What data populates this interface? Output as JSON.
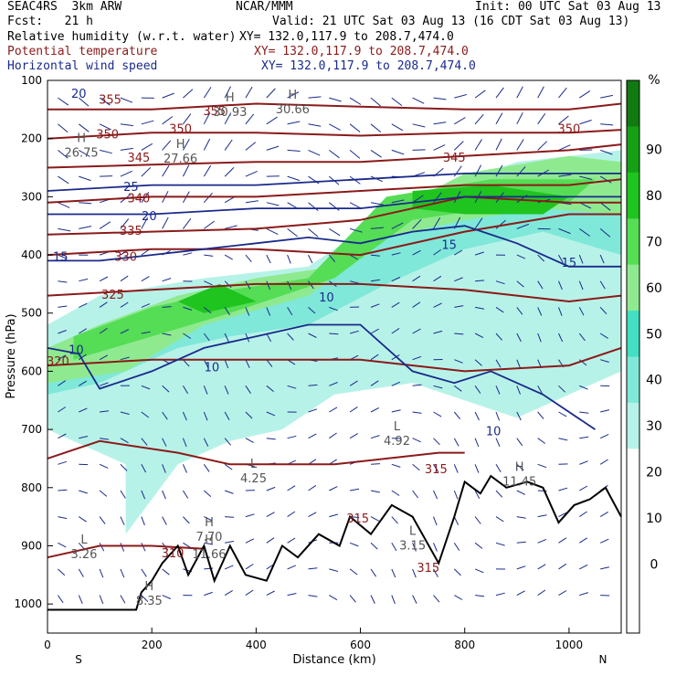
{
  "header": {
    "model": "SEAC4RS  3km ARW",
    "org": "NCAR/MMM",
    "init": "Init: 00 UTC Sat 03 Aug 13",
    "fcst": "Fcst:   21 h",
    "valid": "Valid: 21 UTC Sat 03 Aug 13 (16 CDT Sat 03 Aug 13)",
    "fields": [
      {
        "name": "Relative humidity (w.r.t. water)",
        "xy": "XY= 132.0,117.9 to 208.7,474.0",
        "color": "#000000"
      },
      {
        "name": "Potential temperature",
        "xy": "XY= 132.0,117.9 to 208.7,474.0",
        "color": "#8b1a1a"
      },
      {
        "name": "Horizontal wind speed",
        "xy": "XY= 132.0,117.9 to 208.7,474.0",
        "color": "#1a2a8b"
      }
    ]
  },
  "chart_data": {
    "type": "cross-section",
    "xlabel": "Distance (km)",
    "ylabel": "Pressure (hPa)",
    "xlim": [
      0,
      1100
    ],
    "ylim": [
      1050,
      100
    ],
    "x_ticks": [
      0,
      200,
      400,
      600,
      800,
      1000
    ],
    "y_ticks": [
      100,
      200,
      300,
      400,
      500,
      600,
      700,
      800,
      900,
      1000
    ],
    "x_endpoints": {
      "left": "S",
      "right": "N"
    },
    "colorbar": {
      "unit": "%",
      "ticks": [
        0,
        10,
        20,
        30,
        40,
        50,
        60,
        70,
        80,
        90
      ],
      "colors": [
        "#ffffff",
        "#ffffff",
        "#ffffff",
        "#ffffff",
        "#b7f2e8",
        "#7fe8d8",
        "#42dfc2",
        "#8fea8f",
        "#55dd55",
        "#1fc41f",
        "#16a016",
        "#117a11"
      ]
    },
    "rh_regions": [
      {
        "level": 40,
        "color": "#b7f2e8",
        "points": [
          [
            0,
            520
          ],
          [
            100,
            470
          ],
          [
            300,
            440
          ],
          [
            500,
            420
          ],
          [
            700,
            300
          ],
          [
            900,
            240
          ],
          [
            1100,
            220
          ],
          [
            1100,
            600
          ],
          [
            900,
            680
          ],
          [
            700,
            620
          ],
          [
            550,
            640
          ],
          [
            450,
            700
          ],
          [
            350,
            720
          ],
          [
            250,
            760
          ],
          [
            200,
            820
          ],
          [
            150,
            880
          ],
          [
            150,
            760
          ],
          [
            0,
            700
          ]
        ]
      },
      {
        "level": 50,
        "color": "#7fe8d8",
        "points": [
          [
            0,
            560
          ],
          [
            150,
            510
          ],
          [
            300,
            480
          ],
          [
            500,
            460
          ],
          [
            650,
            350
          ],
          [
            800,
            290
          ],
          [
            1000,
            250
          ],
          [
            1100,
            250
          ],
          [
            1100,
            400
          ],
          [
            950,
            360
          ],
          [
            800,
            390
          ],
          [
            650,
            450
          ],
          [
            500,
            520
          ],
          [
            350,
            540
          ],
          [
            250,
            560
          ],
          [
            100,
            620
          ],
          [
            0,
            640
          ]
        ]
      },
      {
        "level": 60,
        "color": "#8fea8f",
        "points": [
          [
            0,
            560
          ],
          [
            100,
            520
          ],
          [
            250,
            470
          ],
          [
            400,
            440
          ],
          [
            550,
            420
          ],
          [
            650,
            330
          ],
          [
            800,
            260
          ],
          [
            1000,
            230
          ],
          [
            1100,
            240
          ],
          [
            1100,
            330
          ],
          [
            950,
            320
          ],
          [
            800,
            340
          ],
          [
            650,
            370
          ],
          [
            500,
            470
          ],
          [
            300,
            520
          ],
          [
            150,
            600
          ],
          [
            0,
            620
          ]
        ]
      },
      {
        "level": 70,
        "color": "#55dd55",
        "points": [
          [
            50,
            540
          ],
          [
            200,
            490
          ],
          [
            350,
            460
          ],
          [
            500,
            440
          ],
          [
            650,
            300
          ],
          [
            850,
            270
          ],
          [
            1050,
            270
          ],
          [
            1000,
            310
          ],
          [
            850,
            320
          ],
          [
            700,
            340
          ],
          [
            550,
            440
          ],
          [
            350,
            500
          ],
          [
            200,
            540
          ],
          [
            50,
            580
          ]
        ]
      },
      {
        "level": 80,
        "color": "#1fc41f",
        "points": [
          [
            250,
            480
          ],
          [
            330,
            450
          ],
          [
            400,
            480
          ],
          [
            300,
            500
          ]
        ]
      },
      {
        "level": 80,
        "color": "#1fc41f",
        "points": [
          [
            700,
            290
          ],
          [
            850,
            280
          ],
          [
            1000,
            300
          ],
          [
            950,
            330
          ],
          [
            800,
            330
          ],
          [
            700,
            320
          ]
        ]
      }
    ],
    "theta_contours": [
      {
        "label": "310",
        "points": [
          [
            0,
            920
          ],
          [
            100,
            900
          ],
          [
            200,
            900
          ],
          [
            300,
            905
          ]
        ]
      },
      {
        "label": "315",
        "points": [
          [
            0,
            750
          ],
          [
            100,
            720
          ],
          [
            250,
            740
          ],
          [
            350,
            760
          ],
          [
            450,
            760
          ],
          [
            550,
            760
          ],
          [
            750,
            740
          ],
          [
            800,
            740
          ]
        ]
      },
      {
        "label": "320",
        "points": [
          [
            0,
            590
          ],
          [
            200,
            580
          ],
          [
            400,
            580
          ],
          [
            600,
            580
          ],
          [
            800,
            600
          ],
          [
            1000,
            590
          ],
          [
            1100,
            560
          ]
        ]
      },
      {
        "label": "325",
        "points": [
          [
            0,
            470
          ],
          [
            200,
            460
          ],
          [
            400,
            450
          ],
          [
            600,
            450
          ],
          [
            800,
            460
          ],
          [
            1000,
            480
          ],
          [
            1100,
            470
          ]
        ]
      },
      {
        "label": "330",
        "points": [
          [
            0,
            400
          ],
          [
            200,
            390
          ],
          [
            400,
            390
          ],
          [
            600,
            400
          ],
          [
            800,
            360
          ],
          [
            1000,
            330
          ],
          [
            1100,
            330
          ]
        ]
      },
      {
        "label": "335",
        "points": [
          [
            0,
            365
          ],
          [
            200,
            360
          ],
          [
            400,
            355
          ],
          [
            600,
            340
          ],
          [
            800,
            300
          ],
          [
            1000,
            310
          ],
          [
            1100,
            310
          ]
        ]
      },
      {
        "label": "340",
        "points": [
          [
            0,
            310
          ],
          [
            200,
            300
          ],
          [
            400,
            300
          ],
          [
            600,
            290
          ],
          [
            800,
            280
          ],
          [
            1000,
            280
          ],
          [
            1100,
            270
          ]
        ]
      },
      {
        "label": "345",
        "points": [
          [
            0,
            250
          ],
          [
            200,
            245
          ],
          [
            400,
            240
          ],
          [
            600,
            240
          ],
          [
            800,
            230
          ],
          [
            1000,
            220
          ],
          [
            1100,
            210
          ]
        ]
      },
      {
        "label": "350",
        "points": [
          [
            0,
            200
          ],
          [
            200,
            190
          ],
          [
            400,
            190
          ],
          [
            600,
            195
          ],
          [
            800,
            190
          ],
          [
            1000,
            190
          ],
          [
            1100,
            185
          ]
        ]
      },
      {
        "label": "355",
        "points": [
          [
            0,
            150
          ],
          [
            200,
            150
          ],
          [
            400,
            140
          ],
          [
            600,
            145
          ],
          [
            800,
            150
          ],
          [
            1000,
            150
          ],
          [
            1100,
            140
          ]
        ]
      }
    ],
    "theta_labels": [
      {
        "text": "310",
        "x": 240,
        "p": 920
      },
      {
        "text": "315",
        "x": 595,
        "p": 860
      },
      {
        "text": "315",
        "x": 745,
        "p": 775
      },
      {
        "text": "315",
        "x": 730,
        "p": 945
      },
      {
        "text": "320",
        "x": 20,
        "p": 590
      },
      {
        "text": "325",
        "x": 125,
        "p": 475
      },
      {
        "text": "330",
        "x": 150,
        "p": 410
      },
      {
        "text": "335",
        "x": 160,
        "p": 365
      },
      {
        "text": "340",
        "x": 175,
        "p": 310
      },
      {
        "text": "345",
        "x": 175,
        "p": 240
      },
      {
        "text": "350",
        "x": 115,
        "p": 200
      },
      {
        "text": "350",
        "x": 255,
        "p": 190
      },
      {
        "text": "355",
        "x": 120,
        "p": 140
      },
      {
        "text": "355",
        "x": 320,
        "p": 160
      },
      {
        "text": "350",
        "x": 1000,
        "p": 190
      },
      {
        "text": "345",
        "x": 780,
        "p": 240
      }
    ],
    "wind_contours": [
      {
        "label": "10",
        "points": [
          [
            0,
            560
          ],
          [
            60,
            570
          ],
          [
            100,
            630
          ],
          [
            200,
            600
          ],
          [
            300,
            560
          ],
          [
            400,
            540
          ],
          [
            500,
            520
          ],
          [
            600,
            520
          ],
          [
            700,
            600
          ],
          [
            780,
            620
          ],
          [
            850,
            600
          ],
          [
            950,
            640
          ],
          [
            1050,
            700
          ]
        ]
      },
      {
        "label": "15",
        "points": [
          [
            0,
            410
          ],
          [
            100,
            410
          ],
          [
            200,
            400
          ],
          [
            300,
            390
          ],
          [
            400,
            380
          ],
          [
            500,
            370
          ],
          [
            600,
            380
          ],
          [
            700,
            360
          ],
          [
            800,
            350
          ],
          [
            900,
            380
          ],
          [
            1000,
            420
          ],
          [
            1100,
            420
          ]
        ]
      },
      {
        "label": "20",
        "points": [
          [
            0,
            330
          ],
          [
            200,
            330
          ],
          [
            400,
            320
          ],
          [
            600,
            320
          ],
          [
            800,
            300
          ],
          [
            1000,
            300
          ],
          [
            1100,
            300
          ]
        ]
      },
      {
        "label": "25",
        "points": [
          [
            0,
            290
          ],
          [
            200,
            280
          ],
          [
            400,
            280
          ],
          [
            600,
            270
          ],
          [
            800,
            260
          ],
          [
            1000,
            260
          ],
          [
            1100,
            260
          ]
        ]
      }
    ],
    "wind_labels": [
      {
        "text": "10",
        "x": 55,
        "p": 570
      },
      {
        "text": "10",
        "x": 315,
        "p": 600
      },
      {
        "text": "10",
        "x": 535,
        "p": 480
      },
      {
        "text": "10",
        "x": 855,
        "p": 710
      },
      {
        "text": "15",
        "x": 25,
        "p": 410
      },
      {
        "text": "15",
        "x": 1000,
        "p": 420
      },
      {
        "text": "15",
        "x": 770,
        "p": 390
      },
      {
        "text": "20",
        "x": 195,
        "p": 340
      },
      {
        "text": "25",
        "x": 160,
        "p": 290
      },
      {
        "text": "20",
        "x": 60,
        "p": 130
      }
    ],
    "pressure_centers": [
      {
        "type": "H",
        "value": "26.75",
        "x": 65,
        "p": 225
      },
      {
        "type": "H",
        "value": "27.66",
        "x": 255,
        "p": 235
      },
      {
        "type": "H",
        "value": "30.93",
        "x": 350,
        "p": 155
      },
      {
        "type": "H",
        "value": "30.66",
        "x": 470,
        "p": 150
      },
      {
        "type": "H",
        "value": "7.70",
        "x": 310,
        "p": 885
      },
      {
        "type": "H",
        "value": "11.66",
        "x": 310,
        "p": 915
      },
      {
        "type": "H",
        "value": "8.35",
        "x": 195,
        "p": 995
      },
      {
        "type": "H",
        "value": "11.45",
        "x": 905,
        "p": 790
      },
      {
        "type": "L",
        "value": "3.26",
        "x": 70,
        "p": 915
      },
      {
        "type": "L",
        "value": "4.25",
        "x": 395,
        "p": 785
      },
      {
        "type": "L",
        "value": "4.92",
        "x": 670,
        "p": 720
      },
      {
        "type": "L",
        "value": "3.15",
        "x": 700,
        "p": 900
      }
    ],
    "terrain": [
      [
        0,
        1010
      ],
      [
        170,
        1010
      ],
      [
        180,
        980
      ],
      [
        200,
        960
      ],
      [
        220,
        930
      ],
      [
        250,
        900
      ],
      [
        270,
        950
      ],
      [
        300,
        900
      ],
      [
        320,
        960
      ],
      [
        350,
        900
      ],
      [
        380,
        950
      ],
      [
        420,
        960
      ],
      [
        450,
        900
      ],
      [
        480,
        920
      ],
      [
        520,
        880
      ],
      [
        560,
        900
      ],
      [
        580,
        850
      ],
      [
        620,
        880
      ],
      [
        660,
        830
      ],
      [
        700,
        850
      ],
      [
        750,
        930
      ],
      [
        780,
        850
      ],
      [
        800,
        790
      ],
      [
        830,
        810
      ],
      [
        850,
        780
      ],
      [
        880,
        800
      ],
      [
        920,
        790
      ],
      [
        950,
        800
      ],
      [
        980,
        860
      ],
      [
        1010,
        830
      ],
      [
        1040,
        820
      ],
      [
        1070,
        800
      ],
      [
        1100,
        850
      ]
    ]
  }
}
